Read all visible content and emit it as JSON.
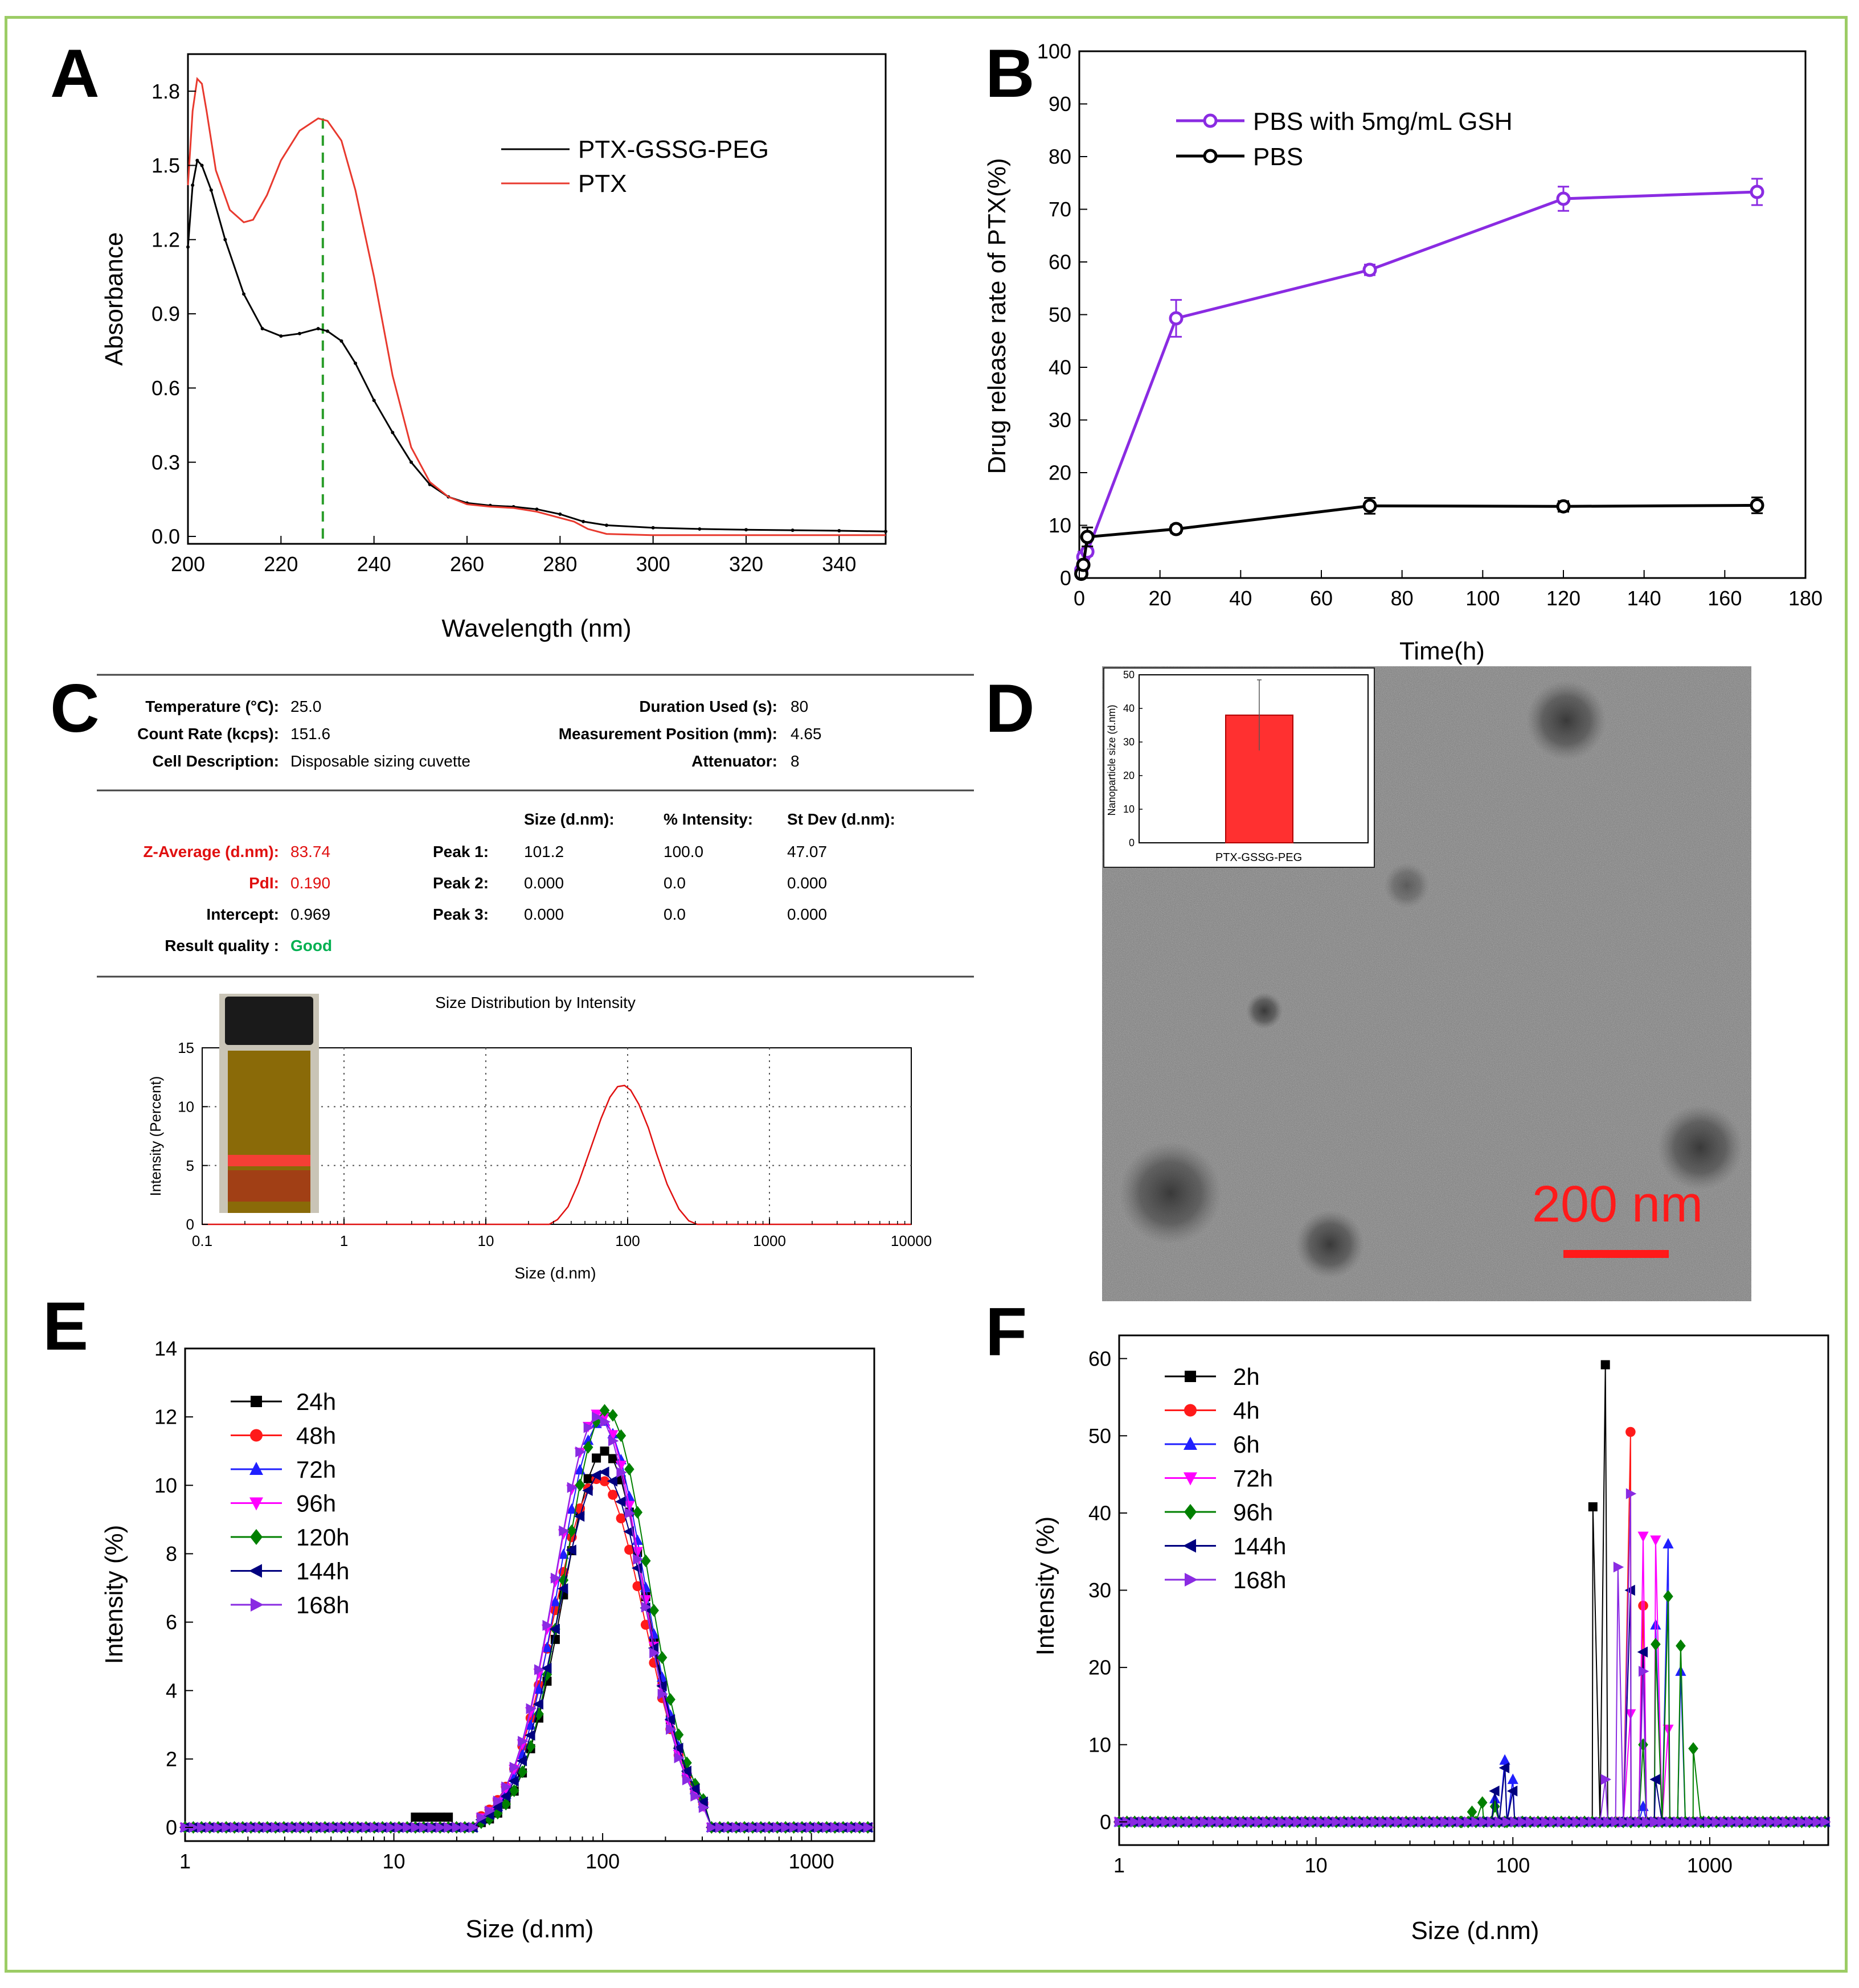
{
  "colors": {
    "frame": "#9ccc65",
    "red": "#e8392e",
    "purple": "#8a2be2",
    "black": "#000000",
    "green": "#00b050",
    "dls_red": "#e01010"
  },
  "chart_data": [
    {
      "panel": "A",
      "type": "line",
      "xlabel": "Wavelength (nm)",
      "ylabel": "Absorbance",
      "xlim": [
        200,
        350
      ],
      "ylim": [
        -0.03,
        1.95
      ],
      "xticks": [
        200,
        220,
        240,
        260,
        280,
        300,
        320,
        340
      ],
      "yticks": [
        0.0,
        0.3,
        0.6,
        0.9,
        1.2,
        1.5,
        1.8
      ],
      "ytick_labels": [
        "0.0",
        "0.3",
        "0.6",
        "0.9",
        "1.2",
        "1.5",
        "1.8"
      ],
      "marker_line_x": 229,
      "series": [
        {
          "name": "PTX-GSSG-PEG",
          "color": "#000000",
          "x": [
            200,
            201,
            202,
            203,
            205,
            208,
            212,
            216,
            220,
            224,
            228,
            230,
            233,
            236,
            240,
            244,
            248,
            252,
            256,
            260,
            265,
            270,
            275,
            280,
            285,
            290,
            300,
            310,
            320,
            330,
            340,
            350
          ],
          "y": [
            1.17,
            1.42,
            1.52,
            1.5,
            1.4,
            1.2,
            0.98,
            0.84,
            0.81,
            0.82,
            0.84,
            0.83,
            0.79,
            0.7,
            0.55,
            0.42,
            0.3,
            0.21,
            0.16,
            0.135,
            0.125,
            0.12,
            0.11,
            0.09,
            0.06,
            0.045,
            0.035,
            0.03,
            0.027,
            0.025,
            0.023,
            0.02
          ]
        },
        {
          "name": "PTX",
          "color": "#e8392e",
          "x": [
            200,
            201,
            202,
            203,
            204,
            206,
            209,
            212,
            214,
            217,
            220,
            224,
            228,
            230,
            233,
            236,
            240,
            244,
            248,
            252,
            256,
            260,
            265,
            270,
            275,
            280,
            283,
            286,
            290,
            300,
            310,
            320,
            330,
            340,
            350
          ],
          "y": [
            1.42,
            1.72,
            1.85,
            1.83,
            1.72,
            1.48,
            1.32,
            1.27,
            1.28,
            1.38,
            1.52,
            1.64,
            1.69,
            1.68,
            1.6,
            1.4,
            1.05,
            0.65,
            0.36,
            0.22,
            0.16,
            0.13,
            0.12,
            0.115,
            0.1,
            0.075,
            0.06,
            0.03,
            0.01,
            0.005,
            0.005,
            0.005,
            0.005,
            0.005,
            0.005
          ]
        }
      ]
    },
    {
      "panel": "B",
      "type": "line",
      "xlabel": "Time(h)",
      "ylabel": "Drug release rate of PTX(%)",
      "xlim": [
        0,
        180
      ],
      "ylim": [
        0,
        100
      ],
      "xticks": [
        0,
        20,
        40,
        60,
        80,
        100,
        120,
        140,
        160,
        180
      ],
      "yticks": [
        0,
        10,
        20,
        30,
        40,
        50,
        60,
        70,
        80,
        90,
        100
      ],
      "series": [
        {
          "name": "PBS with 5mg/mL GSH",
          "color": "#8a2be2",
          "x": [
            0.5,
            1,
            2,
            24,
            72,
            120,
            168
          ],
          "y": [
            1.5,
            4,
            5,
            49.3,
            58.5,
            72,
            73.3
          ],
          "err": [
            0.5,
            1,
            0.8,
            3.5,
            1,
            2.3,
            2.5
          ]
        },
        {
          "name": "PBS",
          "color": "#000000",
          "x": [
            0.5,
            1,
            2,
            24,
            72,
            120,
            168
          ],
          "y": [
            0.8,
            2.5,
            7.8,
            9.3,
            13.7,
            13.6,
            13.8
          ],
          "err": [
            0.3,
            0.5,
            1.8,
            0.8,
            1.5,
            1,
            1.5
          ]
        }
      ]
    },
    {
      "panel": "C",
      "type": "line",
      "title": "Size Distribution by Intensity",
      "xlabel": "Size (d.nm)",
      "ylabel": "Intensity (Percent)",
      "xscale": "log",
      "xlim": [
        0.1,
        10000
      ],
      "ylim": [
        0,
        15
      ],
      "xticks": [
        0.1,
        1,
        10,
        100,
        1000,
        10000
      ],
      "xtick_labels": [
        "0.1",
        "1",
        "10",
        "100",
        "1000",
        "10000"
      ],
      "yticks": [
        0,
        5,
        10,
        15
      ],
      "series": [
        {
          "name": "Size distribution",
          "color": "#e01010",
          "x": [
            0.1,
            28,
            32,
            38,
            45,
            55,
            65,
            75,
            85,
            95,
            105,
            120,
            140,
            160,
            190,
            230,
            270,
            310,
            10000
          ],
          "y": [
            0,
            0,
            0.4,
            1.5,
            3.5,
            6.5,
            9,
            10.8,
            11.7,
            11.8,
            11.4,
            10.2,
            8.2,
            6,
            3.4,
            1.3,
            0.3,
            0,
            0
          ]
        }
      ]
    },
    {
      "panel": "D",
      "type": "bar",
      "ylabel": "Nanoparticle size (d.nm)",
      "categories": [
        "PTX-GSSG-PEG"
      ],
      "values": [
        38
      ],
      "err": [
        10.5
      ],
      "ylim": [
        0,
        50
      ],
      "yticks": [
        0,
        10,
        20,
        30,
        40,
        50
      ]
    },
    {
      "panel": "E",
      "type": "scatter",
      "xlabel": "Size (d.nm)",
      "ylabel": "Intensity (%)",
      "xscale": "log",
      "xlim": [
        1,
        2000
      ],
      "ylim": [
        -0.4,
        14
      ],
      "xticks": [
        1,
        10,
        100,
        1000
      ],
      "xtick_labels": [
        "1",
        "10",
        "100",
        "1000"
      ],
      "yticks": [
        0,
        2,
        4,
        6,
        8,
        10,
        12,
        14
      ],
      "series": [
        {
          "name": "24h",
          "color": "#000000",
          "marker": "square",
          "peak": 11.0,
          "center": 102,
          "width": 0.2,
          "shoulder": true
        },
        {
          "name": "48h",
          "color": "#ff1a1a",
          "marker": "circle",
          "peak": 10.2,
          "center": 96,
          "width": 0.215,
          "shoulder": false
        },
        {
          "name": "72h",
          "color": "#1f1fff",
          "marker": "triangle-up",
          "peak": 11.9,
          "center": 99,
          "width": 0.205,
          "shoulder": false
        },
        {
          "name": "96h",
          "color": "#ff00ff",
          "marker": "triangle-down",
          "peak": 12.1,
          "center": 96,
          "width": 0.205,
          "shoulder": false
        },
        {
          "name": "120h",
          "color": "#008000",
          "marker": "diamond",
          "peak": 12.2,
          "center": 104,
          "width": 0.2,
          "shoulder": false
        },
        {
          "name": "144h",
          "color": "#00007f",
          "marker": "triangle-left",
          "peak": 10.4,
          "center": 100,
          "width": 0.21,
          "shoulder": false
        },
        {
          "name": "168h",
          "color": "#8a2be2",
          "marker": "triangle-right",
          "peak": 12.0,
          "center": 95,
          "width": 0.205,
          "shoulder": false
        }
      ]
    },
    {
      "panel": "F",
      "type": "scatter",
      "xlabel": "Size (d.nm)",
      "ylabel": "Intensity (%)",
      "xscale": "log",
      "xlim": [
        1,
        4000
      ],
      "ylim": [
        -3,
        63
      ],
      "xticks": [
        1,
        10,
        100,
        1000
      ],
      "xtick_labels": [
        "1",
        "10",
        "100",
        "1000"
      ],
      "yticks": [
        0,
        10,
        20,
        30,
        40,
        50,
        60
      ],
      "series": [
        {
          "name": "2h",
          "color": "#000000",
          "marker": "square",
          "px": [
            255,
            295,
            342,
            396,
            459
          ],
          "py": [
            40.8,
            59.2,
            0,
            0,
            0
          ]
        },
        {
          "name": "4h",
          "color": "#ff1a1a",
          "marker": "circle",
          "px": [
            342,
            396,
            459,
            531
          ],
          "py": [
            0,
            50.5,
            28,
            0
          ]
        },
        {
          "name": "6h",
          "color": "#1f1fff",
          "marker": "triangle-up",
          "px": [
            70,
            81,
            91,
            100,
            110,
            396,
            459,
            531,
            615,
            712
          ],
          "py": [
            0,
            3,
            8,
            5.5,
            0,
            0,
            2,
            25.5,
            36,
            19.5
          ]
        },
        {
          "name": "72h",
          "color": "#ff00ff",
          "marker": "triangle-down",
          "px": [
            342,
            396,
            459,
            531,
            615,
            712
          ],
          "py": [
            0,
            14,
            37,
            36.5,
            12,
            0
          ]
        },
        {
          "name": "96h",
          "color": "#008000",
          "marker": "diamond",
          "px": [
            55,
            62,
            70,
            81,
            91,
            396,
            459,
            531,
            615,
            712,
            825,
            930
          ],
          "py": [
            0,
            1.3,
            2.5,
            2,
            0,
            0,
            10,
            23,
            29.2,
            22.8,
            9.5,
            0
          ]
        },
        {
          "name": "144h",
          "color": "#00007f",
          "marker": "triangle-left",
          "px": [
            70,
            81,
            91,
            100,
            110,
            342,
            396,
            459,
            531
          ],
          "py": [
            0,
            4,
            7,
            4,
            0,
            0,
            30,
            22,
            5.5
          ]
        },
        {
          "name": "168h",
          "color": "#8a2be2",
          "marker": "triangle-right",
          "px": [
            295,
            342,
            396,
            459,
            531
          ],
          "py": [
            5.5,
            33,
            42.5,
            19.5,
            0
          ]
        }
      ]
    }
  ],
  "panels": {
    "a": "A",
    "b": "B",
    "c": "C",
    "d": "D",
    "e": "E",
    "f": "F"
  },
  "dls": {
    "temperature_label": "Temperature (°C):",
    "temperature": "25.0",
    "count_rate_label": "Count Rate (kcps):",
    "count_rate": "151.6",
    "cell_label": "Cell Description:",
    "cell": "Disposable sizing cuvette",
    "duration_label": "Duration Used (s):",
    "duration": "80",
    "position_label": "Measurement Position (mm):",
    "position": "4.65",
    "attenuator_label": "Attenuator:",
    "attenuator": "8",
    "col_size": "Size (d.nm):",
    "col_intensity": "% Intensity:",
    "col_stdev": "St Dev (d.nm):",
    "zavg_label": "Z-Average (d.nm):",
    "zavg": "83.74",
    "pdi_label": "PdI:",
    "pdi": "0.190",
    "intercept_label": "Intercept:",
    "intercept": "0.969",
    "quality_label": "Result quality :",
    "quality": "Good",
    "peaks": [
      {
        "label": "Peak 1:",
        "size": "101.2",
        "intensity": "100.0",
        "stdev": "47.07"
      },
      {
        "label": "Peak 2:",
        "size": "0.000",
        "intensity": "0.0",
        "stdev": "0.000"
      },
      {
        "label": "Peak 3:",
        "size": "0.000",
        "intensity": "0.0",
        "stdev": "0.000"
      }
    ]
  },
  "tem": {
    "scale_label": "200 nm"
  }
}
